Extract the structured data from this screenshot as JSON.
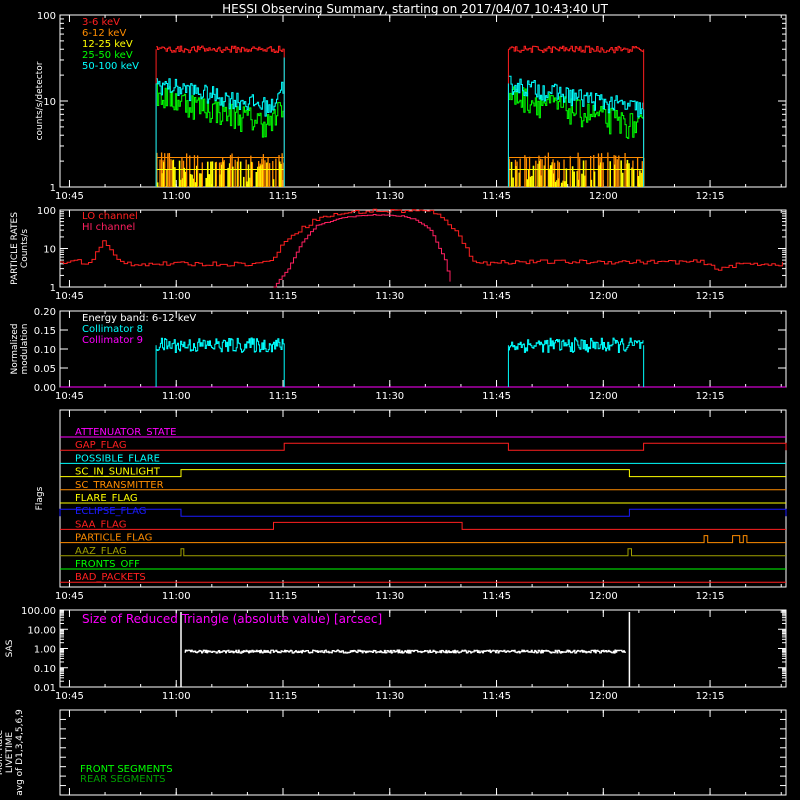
{
  "title": "HESSI Observing Summary, starting on 2017/04/07 10:43:40 UT",
  "x_ticks": [
    "10:45",
    "11:00",
    "11:15",
    "11:30",
    "11:45",
    "12:00",
    "12:15"
  ],
  "x_tick_minutes": [
    1.33,
    16.33,
    31.33,
    46.33,
    61.33,
    76.33,
    91.33
  ],
  "x_range_minutes": [
    0,
    102
  ],
  "colors": {
    "red": "#ff2020",
    "orange": "#ff8c00",
    "yellow": "#ffff00",
    "green": "#00ff00",
    "cyan": "#00ffff",
    "magenta": "#ff00ff",
    "pink": "#ff2060",
    "blue": "#1a1aff",
    "olive": "#a0a000",
    "darkgreen": "#00a000"
  },
  "chart_data": [
    {
      "name": "count-rates",
      "type": "line",
      "ylabel": "counts/s/detector",
      "yscale": "log",
      "ylim": [
        1,
        100
      ],
      "y_ticks": [
        "1",
        "10",
        "100"
      ],
      "legend": [
        {
          "label": "3-6 keV",
          "color": "#ff2020"
        },
        {
          "label": "6-12 keV",
          "color": "#ff8c00"
        },
        {
          "label": "12-25 keV",
          "color": "#ffff00"
        },
        {
          "label": "25-50 keV",
          "color": "#00ff00"
        },
        {
          "label": "50-100 keV",
          "color": "#00ffff"
        }
      ],
      "intervals_minutes": [
        [
          13.5,
          31.5
        ],
        [
          63.0,
          82.0
        ]
      ],
      "levels": {
        "3-6 keV": 40,
        "6-12 keV": 2.2,
        "12-25 keV": 1.6,
        "25-50 keV_start": 12,
        "25-50 keV_end": 5,
        "50-100 keV_start": 16,
        "50-100 keV_end": 8
      }
    },
    {
      "name": "particle-rates",
      "type": "line",
      "ylabel": "PARTICLE RATES Counts/s",
      "yscale": "log",
      "ylim": [
        1,
        100
      ],
      "y_ticks": [
        "1",
        "10",
        "100"
      ],
      "legend": [
        {
          "label": "LO channel",
          "color": "#ff2020"
        },
        {
          "label": "HI channel",
          "color": "#ff2060"
        }
      ],
      "lo_points": [
        [
          0,
          4
        ],
        [
          2,
          5
        ],
        [
          4,
          4
        ],
        [
          6,
          15
        ],
        [
          8,
          5
        ],
        [
          10,
          4
        ],
        [
          28,
          4
        ],
        [
          30,
          6
        ],
        [
          32,
          20
        ],
        [
          36,
          60
        ],
        [
          40,
          85
        ],
        [
          44,
          95
        ],
        [
          50,
          95
        ],
        [
          52,
          90
        ],
        [
          54,
          60
        ],
        [
          56,
          20
        ],
        [
          58,
          5
        ],
        [
          60,
          4
        ],
        [
          62,
          4.5
        ],
        [
          90,
          4.5
        ],
        [
          92,
          3
        ],
        [
          96,
          4
        ],
        [
          102,
          4
        ]
      ],
      "hi_points": [
        [
          30,
          1
        ],
        [
          32,
          3
        ],
        [
          34,
          15
        ],
        [
          36,
          40
        ],
        [
          40,
          65
        ],
        [
          44,
          75
        ],
        [
          48,
          70
        ],
        [
          50,
          55
        ],
        [
          52,
          30
        ],
        [
          54,
          5
        ],
        [
          55,
          1
        ]
      ]
    },
    {
      "name": "modulation",
      "type": "line",
      "ylabel": "Normalized modulation",
      "ylim": [
        0,
        0.2
      ],
      "y_ticks": [
        "0.00",
        "0.05",
        "0.10",
        "0.15",
        "0.20"
      ],
      "legend": [
        {
          "label": "Energy band: 6-12 keV",
          "color": "#ffffff"
        },
        {
          "label": "Collimator 8",
          "color": "#00ffff"
        },
        {
          "label": "Collimator 9",
          "color": "#ff00ff"
        }
      ],
      "intervals_minutes": [
        [
          13.5,
          31.5
        ],
        [
          63.0,
          82.0
        ]
      ],
      "level": 0.11
    },
    {
      "name": "flags",
      "type": "table",
      "ylabel": "Flags",
      "flags": [
        {
          "label": "ATTENUATOR_STATE",
          "color": "#ff00ff",
          "segments": []
        },
        {
          "label": "GAP_FLAG",
          "color": "#ff2020",
          "segments": [
            [
              31.5,
              63.0
            ],
            [
              82.0,
              102
            ]
          ]
        },
        {
          "label": "POSSIBLE_FLARE",
          "color": "#00ffff",
          "segments": []
        },
        {
          "label": "SC_IN_SUNLIGHT",
          "color": "#ffff00",
          "segments": [
            [
              17.0,
              80.0
            ]
          ]
        },
        {
          "label": "SC_TRANSMITTER",
          "color": "#ff8c00",
          "segments": []
        },
        {
          "label": "FLARE_FLAG",
          "color": "#ffff00",
          "segments": []
        },
        {
          "label": "ECLIPSE_FLAG",
          "color": "#1a1aff",
          "segments": [
            [
              0,
              17.0
            ],
            [
              80.0,
              102
            ]
          ]
        },
        {
          "label": "SAA_FLAG",
          "color": "#ff2020",
          "segments": [
            [
              30.0,
              56.5
            ]
          ]
        },
        {
          "label": "PARTICLE_FLAG",
          "color": "#ff8c00",
          "segments": [
            [
              90.5,
              91.0
            ],
            [
              94.5,
              95.5
            ],
            [
              96.0,
              96.5
            ]
          ]
        },
        {
          "label": "AAZ_FLAG",
          "color": "#a0a000",
          "segments": [
            [
              17.0,
              17.4
            ],
            [
              79.8,
              80.3
            ]
          ]
        },
        {
          "label": "FRONTS_OFF",
          "color": "#00ff00",
          "segments": []
        },
        {
          "label": "BAD_PACKETS",
          "color": "#ff2020",
          "segments": []
        }
      ]
    },
    {
      "name": "sas",
      "type": "line",
      "ylabel": "SAS",
      "yscale": "log",
      "ylim": [
        0.01,
        100
      ],
      "y_ticks": [
        "0.01",
        "0.10",
        "1.00",
        "10.00",
        "100.00"
      ],
      "annotation": "Size of Reduced Triangle (absolute value) [arcsec]",
      "interval_minutes": [
        17.0,
        80.0
      ],
      "level": 0.7
    },
    {
      "name": "livetime",
      "type": "line",
      "ylabel": "Mon. Rate LIVETIME avg of D1,3,4,5,6,9",
      "legend": [
        {
          "label": "FRONT SEGMENTS",
          "color": "#00ff00"
        },
        {
          "label": "REAR SEGMENTS",
          "color": "#00a000"
        }
      ]
    }
  ]
}
